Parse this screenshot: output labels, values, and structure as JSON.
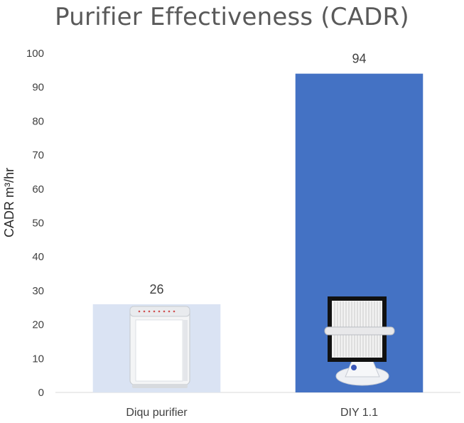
{
  "chart_data": {
    "type": "bar",
    "title": "Purifier Effectiveness (CADR)",
    "xlabel": "",
    "ylabel": "CADR m³/hr",
    "categories": [
      "Diqu purifier",
      "DIY 1.1"
    ],
    "values": [
      26,
      94
    ],
    "data_labels": [
      "26",
      "94"
    ],
    "ylim": [
      0,
      100
    ],
    "yticks": [
      0,
      10,
      20,
      30,
      40,
      50,
      60,
      70,
      80,
      90,
      100
    ],
    "ytick_labels": [
      "0",
      "10",
      "20",
      "30",
      "40",
      "50",
      "60",
      "70",
      "80",
      "90",
      "100"
    ],
    "grid": false,
    "legend": "none",
    "bar_colors": [
      "#dae3f3",
      "#4472c4"
    ],
    "bar_images": [
      "air-purifier-image",
      "diy-box-fan-filter-image"
    ]
  }
}
